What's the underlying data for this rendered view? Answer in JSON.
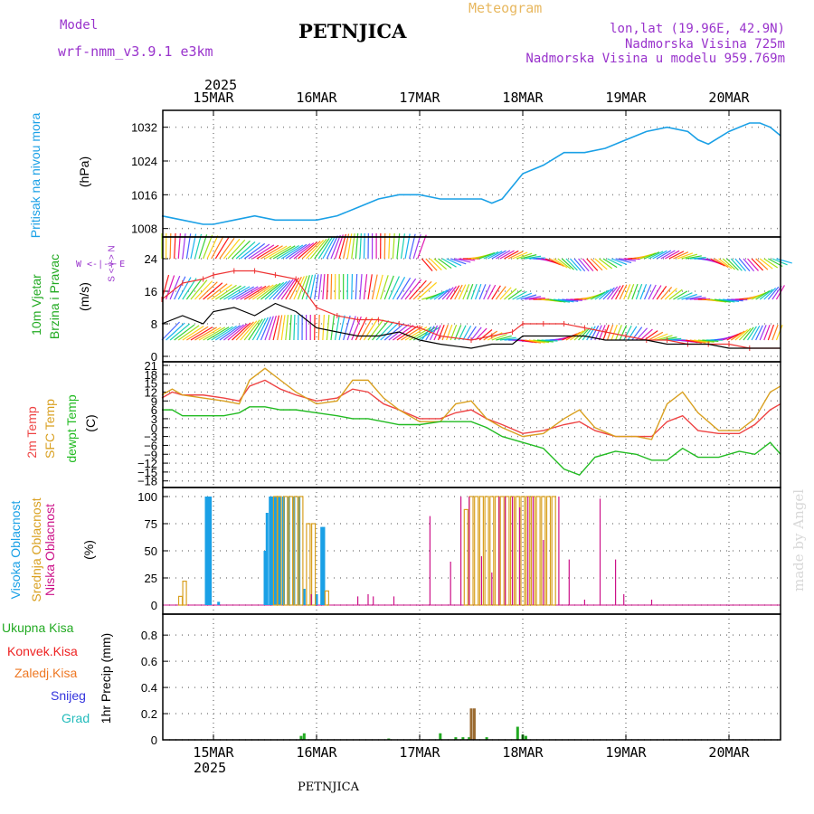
{
  "header": {
    "model_label": "Model",
    "model_value": "wrf-nmm_v3.9.1 e3km",
    "station": "PETNJICA",
    "chart_kind": "Meteogram",
    "coords": "lon,lat (19.96E, 42.9N)",
    "elevation": "Nadmorska Visina 725m",
    "model_elevation": "Nadmorska Visina u modelu 959.769m",
    "footer_station": "PETNJICA",
    "credit": "made by Angel"
  },
  "colors": {
    "pressure": "#1aa0e6",
    "wind_label": "#22aa22",
    "compass": "#9933cc",
    "temp2m": "#ee4444",
    "sfc": "#d9a020",
    "dew": "#22bb22",
    "high_cloud": "#1aa0e6",
    "mid_cloud": "#d9a020",
    "low_cloud": "#cc1188",
    "precip_total": "#22aa22",
    "precip_conv": "#ee2222",
    "precip_frozen": "#ee7722",
    "precip_snow": "#3333dd",
    "precip_grad": "#22bbbb",
    "precip_bar": "#9a6a30",
    "gust": "#ee3333",
    "wind_line": "#000000"
  },
  "top_axis": {
    "year": "2025",
    "dates": [
      "15MAR",
      "16MAR",
      "17MAR",
      "18MAR",
      "19MAR",
      "20MAR"
    ]
  },
  "bottom_axis": {
    "year": "2025",
    "dates": [
      "15MAR",
      "16MAR",
      "17MAR",
      "18MAR",
      "19MAR",
      "20MAR"
    ]
  },
  "panels": {
    "pressure": {
      "title": "Pritisak na nivou mora",
      "unit": "(hPa)"
    },
    "wind": {
      "title1": "10m Vjetar",
      "title2": "Brzina i Pravac",
      "unit": "(m/s)",
      "compass": "W <-|-> E",
      "compass_v": "S <-|-> N"
    },
    "temperature": {
      "title1": "2m Temp",
      "title2": "SFC Temp",
      "title3": "dewpt Temp",
      "unit": "(C)"
    },
    "clouds": {
      "title1": "Visoka Oblacnost",
      "title2": "Srednja Oblacnost",
      "title3": "Niska Oblacnost",
      "unit": "(%)"
    },
    "precip": {
      "title_unit": "1hr Precip (mm)",
      "legend": [
        "Ukupna Kisa",
        "Konvek.Kisa",
        "Zaledj.Kisa",
        "Snijeg",
        "Grad"
      ]
    }
  },
  "chart_data": [
    {
      "type": "line",
      "name": "pressure",
      "title": "Pritisak na nivou mora",
      "ylabel": "(hPa)",
      "ylim": [
        1006,
        1036
      ],
      "yticks": [
        1008,
        1016,
        1024,
        1032
      ],
      "x_days": [
        -0.5,
        5.5
      ],
      "x": [
        -0.5,
        -0.3,
        -0.1,
        0.0,
        0.2,
        0.4,
        0.6,
        0.8,
        1.0,
        1.2,
        1.4,
        1.6,
        1.8,
        2.0,
        2.2,
        2.4,
        2.6,
        2.7,
        2.8,
        2.9,
        3.0,
        3.2,
        3.4,
        3.6,
        3.8,
        4.0,
        4.2,
        4.4,
        4.6,
        4.7,
        4.8,
        5.0,
        5.2,
        5.3,
        5.4,
        5.5
      ],
      "values": [
        1011,
        1010,
        1009,
        1009,
        1010,
        1011,
        1010,
        1010,
        1010,
        1011,
        1013,
        1015,
        1016,
        1016,
        1015,
        1015,
        1015,
        1014,
        1015,
        1018,
        1021,
        1023,
        1026,
        1026,
        1027,
        1029,
        1031,
        1032,
        1031,
        1029,
        1028,
        1031,
        1033,
        1033,
        1032,
        1030
      ]
    },
    {
      "type": "line",
      "name": "wind_speed",
      "ylabel": "(m/s)",
      "ylim": [
        0,
        28
      ],
      "yticks": [
        0,
        8,
        16,
        24
      ],
      "x": [
        -0.5,
        -0.3,
        -0.1,
        0.0,
        0.2,
        0.4,
        0.6,
        0.8,
        1.0,
        1.2,
        1.4,
        1.6,
        1.8,
        2.0,
        2.2,
        2.5,
        2.7,
        2.9,
        3.0,
        3.2,
        3.4,
        3.6,
        3.8,
        4.0,
        4.2,
        4.4,
        4.6,
        4.8,
        5.0,
        5.2,
        5.5
      ],
      "series": [
        {
          "name": "speed",
          "values": [
            8,
            10,
            8,
            11,
            12,
            10,
            13,
            11,
            7,
            6,
            5,
            5,
            6,
            4,
            3,
            2,
            3,
            3,
            5,
            5,
            5,
            5,
            4,
            4,
            4,
            3,
            3,
            3,
            2,
            2,
            2
          ]
        },
        {
          "name": "gust",
          "values": [
            14,
            18,
            19,
            20,
            21,
            21,
            20,
            19,
            12,
            10,
            9,
            9,
            8,
            7,
            5,
            4,
            5,
            6,
            8,
            8,
            8,
            7,
            6,
            5,
            4,
            4,
            3,
            3,
            3,
            2,
            2
          ]
        }
      ]
    },
    {
      "type": "line",
      "name": "temperature",
      "ylabel": "(C)",
      "ylim": [
        -19,
        21
      ],
      "yticks": [
        21,
        18,
        15,
        12,
        9,
        6,
        3,
        0,
        -3,
        -6,
        -9,
        -12,
        -15,
        -18
      ],
      "x": [
        -0.5,
        -0.4,
        -0.3,
        -0.1,
        0.1,
        0.25,
        0.35,
        0.5,
        0.65,
        0.8,
        1.0,
        1.2,
        1.35,
        1.5,
        1.65,
        1.8,
        2.0,
        2.2,
        2.35,
        2.5,
        2.65,
        2.8,
        3.0,
        3.2,
        3.4,
        3.55,
        3.7,
        3.9,
        4.1,
        4.25,
        4.4,
        4.55,
        4.7,
        4.9,
        5.1,
        5.25,
        5.4,
        5.5
      ],
      "series": [
        {
          "name": "2m Temp",
          "values": [
            10,
            12,
            11,
            11,
            10,
            9,
            14,
            16,
            13,
            11,
            9,
            10,
            13,
            12,
            8,
            6,
            3,
            3,
            5,
            6,
            3,
            1,
            -2,
            -1,
            1,
            2,
            -1,
            -3,
            -3,
            -3,
            2,
            4,
            -1,
            -2,
            -2,
            1,
            6,
            8
          ]
        },
        {
          "name": "SFC Temp",
          "values": [
            11,
            13,
            11,
            10,
            9,
            8,
            16,
            20,
            16,
            12,
            8,
            9,
            16,
            16,
            10,
            6,
            2,
            2,
            8,
            9,
            3,
            0,
            -3,
            -2,
            3,
            6,
            0,
            -3,
            -3,
            -4,
            8,
            12,
            5,
            -1,
            -1,
            3,
            12,
            14
          ]
        },
        {
          "name": "dewpt Temp",
          "values": [
            6,
            6,
            4,
            4,
            4,
            5,
            7,
            7,
            6,
            6,
            5,
            4,
            3,
            3,
            2,
            1,
            1,
            2,
            2,
            2,
            0,
            -3,
            -5,
            -7,
            -14,
            -16,
            -10,
            -8,
            -9,
            -11,
            -11,
            -7,
            -10,
            -10,
            -8,
            -9,
            -5,
            -9
          ]
        }
      ]
    },
    {
      "type": "bar",
      "name": "clouds",
      "ylabel": "(%)",
      "ylim": [
        0,
        100
      ],
      "yticks": [
        0,
        25,
        50,
        75,
        100
      ],
      "series": [
        {
          "name": "Visoka Oblacnost",
          "x": [
            -0.07,
            -0.05,
            -0.03,
            0.05,
            0.5,
            0.52,
            0.55,
            0.57,
            0.59,
            0.61,
            0.63,
            0.65,
            0.68,
            0.73,
            0.78,
            0.83,
            0.88,
            1.0,
            1.05,
            1.07
          ],
          "values": [
            100,
            100,
            100,
            3,
            50,
            85,
            100,
            100,
            100,
            100,
            100,
            100,
            100,
            100,
            100,
            100,
            15,
            10,
            72,
            72
          ]
        },
        {
          "name": "Srednja Oblacnost",
          "x": [
            -0.32,
            -0.28,
            0.6,
            0.64,
            0.7,
            0.75,
            0.8,
            0.85,
            0.92,
            0.97,
            1.1,
            2.45,
            2.5,
            2.55,
            2.6,
            2.65,
            2.7,
            2.75,
            2.8,
            2.85,
            2.9,
            2.95,
            3.0,
            3.05,
            3.1,
            3.15,
            3.2,
            3.25,
            3.3
          ],
          "values": [
            8,
            22,
            100,
            100,
            100,
            100,
            100,
            100,
            75,
            75,
            13,
            88,
            100,
            100,
            100,
            100,
            100,
            100,
            100,
            100,
            100,
            100,
            100,
            100,
            100,
            100,
            100,
            100,
            100
          ]
        },
        {
          "name": "Niska Oblacnost",
          "x": [
            0.95,
            1.4,
            1.5,
            1.55,
            1.75,
            2.1,
            2.3,
            2.4,
            2.48,
            2.6,
            2.7,
            2.77,
            2.83,
            2.9,
            2.97,
            3.05,
            3.1,
            3.2,
            3.35,
            3.45,
            3.6,
            3.75,
            3.9,
            3.98,
            4.25
          ],
          "values": [
            10,
            8,
            10,
            8,
            8,
            82,
            40,
            100,
            100,
            45,
            30,
            100,
            100,
            100,
            90,
            100,
            100,
            60,
            100,
            42,
            5,
            98,
            42,
            10,
            5
          ]
        }
      ]
    },
    {
      "type": "bar",
      "name": "precip",
      "ylabel": "1hr Precip (mm)",
      "ylim": [
        0,
        0.96
      ],
      "yticks": [
        0,
        0.2,
        0.4,
        0.6,
        0.8
      ],
      "series": [
        {
          "name": "Ukupna Kisa",
          "x": [
            0.85,
            0.88,
            1.7,
            2.2,
            2.35,
            2.42,
            2.48,
            2.65,
            2.95,
            3.0,
            3.03
          ],
          "values": [
            0.03,
            0.05,
            0.01,
            0.05,
            0.02,
            0.02,
            0.02,
            0.02,
            0.1,
            0.04,
            0.03
          ]
        },
        {
          "name": "Konvek.Kisa",
          "x": [
            2.5,
            2.53
          ],
          "values": [
            0.24,
            0.24
          ]
        }
      ]
    }
  ]
}
